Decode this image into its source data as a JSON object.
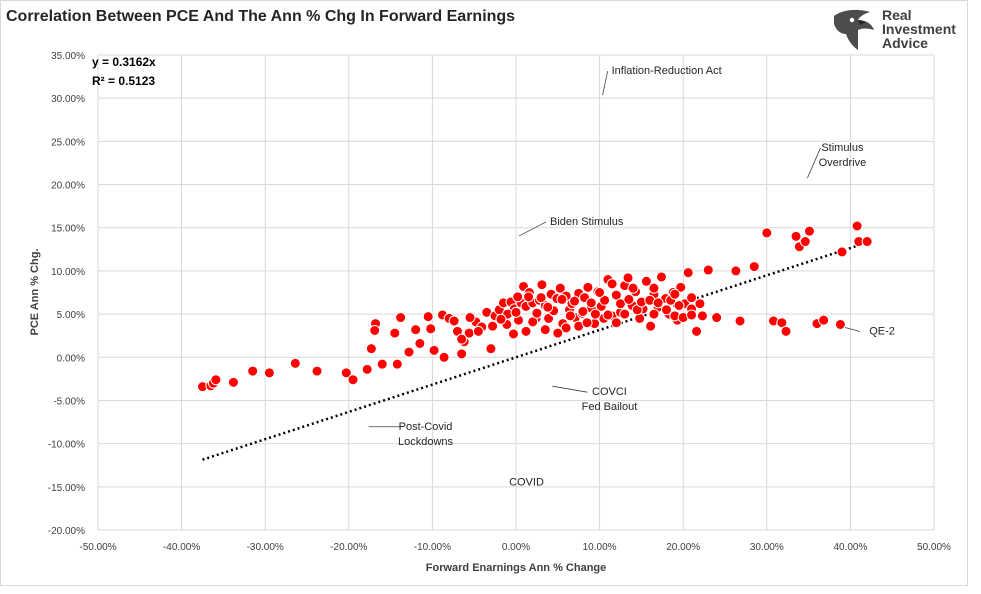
{
  "title": "Correlation Between PCE And The Ann % Chg In Forward Earnings",
  "logo": {
    "lines": [
      "Real",
      "Investment",
      "Advice"
    ]
  },
  "regression": {
    "equation": "y = 0.3162x",
    "r2": "R² = 0.5123"
  },
  "colors": {
    "point": "#ff0000",
    "point_stroke": "#ffffff",
    "trendline": "#000000",
    "grid": "#d9d9d9"
  },
  "chart_data": {
    "type": "scatter",
    "title": "Correlation Between PCE And The Ann % Chg In Forward Earnings",
    "xlabel": "Forward Enarnings Ann % Change",
    "ylabel": "PCE Ann % Chg.",
    "xlim": [
      -50,
      50
    ],
    "ylim": [
      -20,
      35
    ],
    "x_ticks": [
      "-50.00%",
      "-40.00%",
      "-30.00%",
      "-20.00%",
      "-10.00%",
      "0.00%",
      "10.00%",
      "20.00%",
      "30.00%",
      "40.00%",
      "50.00%"
    ],
    "y_ticks": [
      "35.00%",
      "30.00%",
      "25.00%",
      "20.00%",
      "15.00%",
      "10.00%",
      "5.00%",
      "0.00%",
      "-5.00%",
      "-10.00%",
      "-15.00%",
      "-20.00%"
    ],
    "grid": "vertical and horizontal",
    "trendline": {
      "slope": 0.3162,
      "x_start": -37.5,
      "x_end": 41.5
    },
    "annotations": [
      {
        "text": "Inflation-Reduction Act",
        "x": 10.0,
        "y": 30.0
      },
      {
        "text": "Stimulus\nOverdrive",
        "x": 34.5,
        "y": 20.4
      },
      {
        "text": "Biden Stimulus",
        "x": 0.0,
        "y": 13.7
      },
      {
        "text": "QE-2",
        "x": 39.0,
        "y": 3.8
      },
      {
        "text": "COVCI\nFed Bailout",
        "x": 4.0,
        "y": -3.0
      },
      {
        "text": "Post-Covid\nLockdowns",
        "x": -18.0,
        "y": -7.7
      },
      {
        "text": "COVID",
        "x": -2.5,
        "y": -14.4
      }
    ],
    "points": [
      [
        -37.5,
        -3.4
      ],
      [
        -36.5,
        -3.3
      ],
      [
        -36.2,
        -3.0
      ],
      [
        -35.9,
        -2.6
      ],
      [
        -33.8,
        -2.9
      ],
      [
        -31.5,
        -1.6
      ],
      [
        -29.5,
        -1.8
      ],
      [
        -26.4,
        -0.7
      ],
      [
        -23.8,
        -1.6
      ],
      [
        -20.3,
        -1.8
      ],
      [
        -19.5,
        -2.6
      ],
      [
        -17.8,
        -1.4
      ],
      [
        -17.3,
        1.0
      ],
      [
        -16.8,
        3.9
      ],
      [
        -16.9,
        3.1
      ],
      [
        -16.0,
        -0.8
      ],
      [
        -14.5,
        2.8
      ],
      [
        -14.2,
        -0.8
      ],
      [
        -13.8,
        4.6
      ],
      [
        -12.8,
        0.6
      ],
      [
        -12.0,
        3.2
      ],
      [
        -11.5,
        1.6
      ],
      [
        -10.5,
        4.7
      ],
      [
        -10.2,
        3.3
      ],
      [
        -9.8,
        0.8
      ],
      [
        -8.8,
        4.9
      ],
      [
        -8.6,
        0.0
      ],
      [
        -8.0,
        4.5
      ],
      [
        -7.4,
        4.2
      ],
      [
        -7.0,
        3.0
      ],
      [
        -6.5,
        0.4
      ],
      [
        -6.2,
        1.8
      ],
      [
        -5.6,
        2.8
      ],
      [
        -4.8,
        4.1
      ],
      [
        -4.1,
        3.5
      ],
      [
        -3.5,
        5.2
      ],
      [
        -3.0,
        1.0
      ],
      [
        -2.5,
        4.8
      ],
      [
        -2.0,
        5.5
      ],
      [
        -1.5,
        6.3
      ],
      [
        -1.1,
        3.8
      ],
      [
        -0.6,
        6.4
      ],
      [
        -0.2,
        5.6
      ],
      [
        0.3,
        4.3
      ],
      [
        0.6,
        6.3
      ],
      [
        0.9,
        8.2
      ],
      [
        1.2,
        5.9
      ],
      [
        1.6,
        7.5
      ],
      [
        2.0,
        6.3
      ],
      [
        2.4,
        4.5
      ],
      [
        2.8,
        6.6
      ],
      [
        3.1,
        8.4
      ],
      [
        3.5,
        6.0
      ],
      [
        3.9,
        4.5
      ],
      [
        4.2,
        7.3
      ],
      [
        4.6,
        5.3
      ],
      [
        4.9,
        6.8
      ],
      [
        5.3,
        8.0
      ],
      [
        5.6,
        3.9
      ],
      [
        6.0,
        7.1
      ],
      [
        6.4,
        5.5
      ],
      [
        6.7,
        6.2
      ],
      [
        7.1,
        4.6
      ],
      [
        7.5,
        7.4
      ],
      [
        7.9,
        5.1
      ],
      [
        8.2,
        6.9
      ],
      [
        8.6,
        8.1
      ],
      [
        9.0,
        5.7
      ],
      [
        9.4,
        3.9
      ],
      [
        9.8,
        7.6
      ],
      [
        10.2,
        5.9
      ],
      [
        10.6,
        6.6
      ],
      [
        11.0,
        9.0
      ],
      [
        11.5,
        4.8
      ],
      [
        12.0,
        7.2
      ],
      [
        12.5,
        5.2
      ],
      [
        13.0,
        8.3
      ],
      [
        13.4,
        9.2
      ],
      [
        13.9,
        6.0
      ],
      [
        14.3,
        7.6
      ],
      [
        14.8,
        4.5
      ],
      [
        15.2,
        5.6
      ],
      [
        15.6,
        8.8
      ],
      [
        16.1,
        3.6
      ],
      [
        16.5,
        7.3
      ],
      [
        17.0,
        5.8
      ],
      [
        17.4,
        9.3
      ],
      [
        17.9,
        6.8
      ],
      [
        18.3,
        5.0
      ],
      [
        18.8,
        7.5
      ],
      [
        19.3,
        4.3
      ],
      [
        19.7,
        8.1
      ],
      [
        20.2,
        6.2
      ],
      [
        20.6,
        9.8
      ],
      [
        21.0,
        5.6
      ],
      [
        21.6,
        3.0
      ],
      [
        22.3,
        4.8
      ],
      [
        23.0,
        10.1
      ],
      [
        24.0,
        4.6
      ],
      [
        26.3,
        10.0
      ],
      [
        26.8,
        4.2
      ],
      [
        28.5,
        10.5
      ],
      [
        30.0,
        14.4
      ],
      [
        30.8,
        4.2
      ],
      [
        31.8,
        4.0
      ],
      [
        32.3,
        3.0
      ],
      [
        33.5,
        14.0
      ],
      [
        33.9,
        12.8
      ],
      [
        34.6,
        13.4
      ],
      [
        35.1,
        14.6
      ],
      [
        36.0,
        3.9
      ],
      [
        36.8,
        4.3
      ],
      [
        38.8,
        3.8
      ],
      [
        39.0,
        12.2
      ],
      [
        40.8,
        15.2
      ],
      [
        41.0,
        13.4
      ],
      [
        42.0,
        13.4
      ],
      [
        -0.3,
        2.7
      ],
      [
        1.2,
        3.0
      ],
      [
        2.0,
        4.1
      ],
      [
        3.5,
        3.2
      ],
      [
        5.0,
        2.8
      ],
      [
        6.0,
        3.4
      ],
      [
        7.5,
        3.6
      ],
      [
        8.5,
        4.0
      ],
      [
        10.5,
        4.5
      ],
      [
        12.0,
        4.0
      ],
      [
        13.0,
        5.0
      ],
      [
        14.5,
        5.5
      ],
      [
        16.5,
        5.0
      ],
      [
        18.0,
        5.5
      ],
      [
        19.0,
        4.8
      ],
      [
        20.0,
        4.6
      ],
      [
        21.0,
        4.9
      ],
      [
        -1.0,
        5.0
      ],
      [
        0.0,
        5.2
      ],
      [
        2.5,
        5.1
      ],
      [
        4.5,
        5.4
      ],
      [
        6.5,
        4.8
      ],
      [
        8.0,
        5.3
      ],
      [
        9.5,
        5.0
      ],
      [
        11.0,
        4.9
      ],
      [
        12.5,
        6.2
      ],
      [
        15.0,
        6.4
      ],
      [
        16.0,
        6.6
      ],
      [
        17.0,
        6.3
      ],
      [
        18.5,
        6.6
      ],
      [
        19.5,
        6.0
      ],
      [
        21.0,
        6.9
      ],
      [
        22.0,
        6.2
      ],
      [
        9.0,
        6.3
      ],
      [
        7.0,
        6.5
      ],
      [
        5.5,
        6.7
      ],
      [
        3.0,
        6.9
      ],
      [
        1.5,
        7.0
      ],
      [
        0.2,
        7.0
      ],
      [
        -4.5,
        3.0
      ],
      [
        -5.5,
        4.6
      ],
      [
        -2.8,
        3.6
      ],
      [
        -1.8,
        4.4
      ],
      [
        3.8,
        5.8
      ],
      [
        10.0,
        7.5
      ],
      [
        13.5,
        6.7
      ],
      [
        16.5,
        8.0
      ],
      [
        19.0,
        7.3
      ],
      [
        11.5,
        8.5
      ],
      [
        14.0,
        8.0
      ],
      [
        -6.5,
        2.1
      ]
    ]
  }
}
